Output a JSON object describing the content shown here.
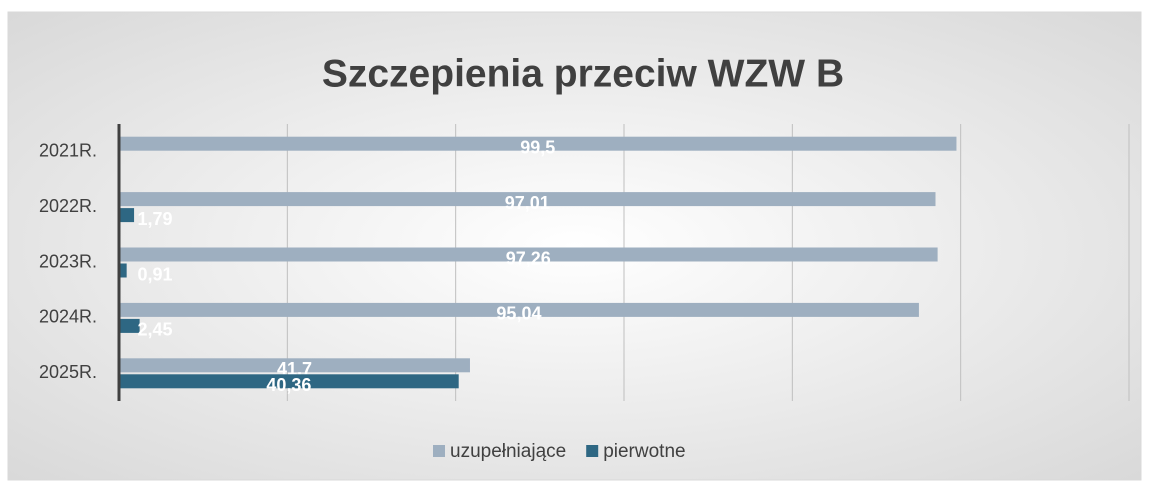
{
  "chart_data": {
    "type": "barh",
    "title": "Szczepienia przeciw WZW B",
    "categories": [
      "2021R.",
      "2022R.",
      "2023R.",
      "2024R.",
      "2025R."
    ],
    "series": [
      {
        "name": "uzupełniające",
        "color": "#9eafc0",
        "values": [
          99.5,
          97.01,
          97.26,
          95.04,
          41.7
        ],
        "value_labels": [
          "99,5",
          "97,01",
          "97,26",
          "95,04",
          "41,7"
        ]
      },
      {
        "name": "pierwotne",
        "color": "#2e6783",
        "values": [
          null,
          1.79,
          0.91,
          2.45,
          40.36
        ],
        "value_labels": [
          null,
          "1,79",
          "0,91",
          "2,45",
          "40,36"
        ]
      }
    ],
    "xlim": [
      0,
      120
    ],
    "xticks": [
      0,
      20,
      40,
      60,
      80,
      100,
      120
    ],
    "grid": true,
    "legend": "bottom"
  }
}
